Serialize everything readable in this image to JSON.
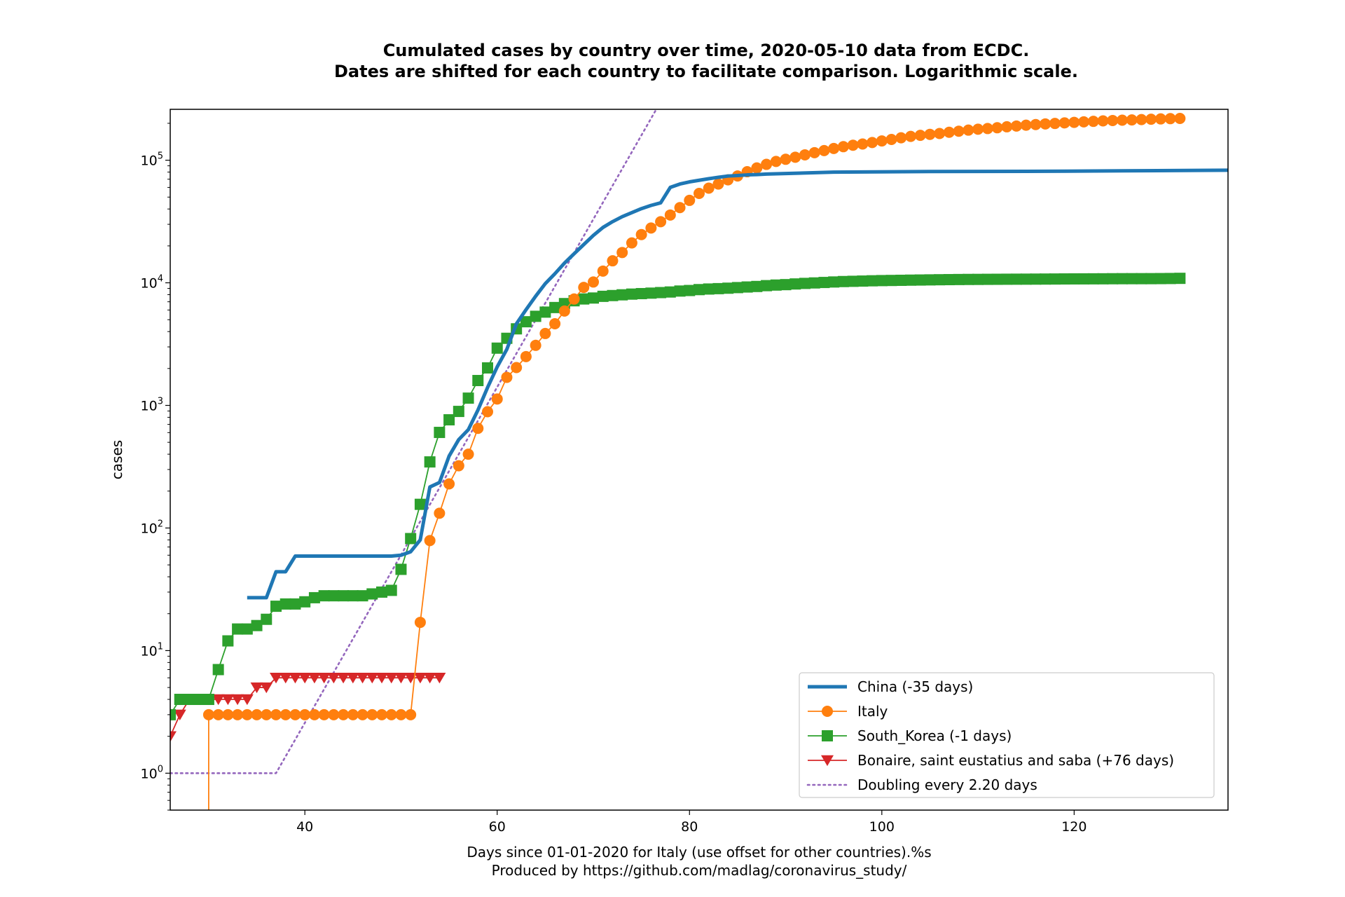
{
  "chart_data": {
    "type": "line",
    "title_lines": [
      "Cumulated cases by country over time, 2020-05-10 data from ECDC.",
      "Dates are shifted for each country to facilitate comparison. Logarithmic scale."
    ],
    "xlabel_lines": [
      "Days since 01-01-2020 for Italy (use offset for other countries).%s",
      "Produced by https://github.com/madlag/coronavirus_study/"
    ],
    "ylabel": "cases",
    "xlim": [
      26,
      136
    ],
    "ylim": [
      0.5,
      260000
    ],
    "yscale": "log",
    "x_ticks": [
      40,
      60,
      80,
      100,
      120
    ],
    "y_ticks": [
      {
        "value": 1,
        "base": "10",
        "exp": "0"
      },
      {
        "value": 10,
        "base": "10",
        "exp": "1"
      },
      {
        "value": 100,
        "base": "10",
        "exp": "2"
      },
      {
        "value": 1000,
        "base": "10",
        "exp": "3"
      },
      {
        "value": 10000,
        "base": "10",
        "exp": "4"
      },
      {
        "value": 100000,
        "base": "10",
        "exp": "5"
      }
    ],
    "grid": false,
    "legend_position": "lower right",
    "series": [
      {
        "name": "China (-35 days)",
        "color": "#1f77b4",
        "marker": "none",
        "line_style": "solid",
        "points": [
          [
            34,
            27
          ],
          [
            36,
            27
          ],
          [
            37,
            44
          ],
          [
            38,
            44
          ],
          [
            39,
            59
          ],
          [
            40,
            59
          ],
          [
            41,
            59
          ],
          [
            42,
            59
          ],
          [
            43,
            59
          ],
          [
            44,
            59
          ],
          [
            45,
            59
          ],
          [
            46,
            59
          ],
          [
            47,
            59
          ],
          [
            48,
            59
          ],
          [
            49,
            59
          ],
          [
            50,
            60
          ],
          [
            51,
            64
          ],
          [
            52,
            80
          ],
          [
            53,
            216
          ],
          [
            54,
            235
          ],
          [
            55,
            386
          ],
          [
            56,
            526
          ],
          [
            57,
            634
          ],
          [
            58,
            916
          ],
          [
            59,
            1399
          ],
          [
            60,
            2062
          ],
          [
            61,
            2863
          ],
          [
            62,
            4630
          ],
          [
            63,
            6031
          ],
          [
            64,
            7772
          ],
          [
            65,
            9847
          ],
          [
            66,
            11853
          ],
          [
            67,
            14476
          ],
          [
            68,
            17271
          ],
          [
            69,
            20502
          ],
          [
            70,
            24347
          ],
          [
            71,
            28276
          ],
          [
            72,
            31531
          ],
          [
            73,
            34635
          ],
          [
            74,
            37317
          ],
          [
            75,
            40265
          ],
          [
            76,
            42769
          ],
          [
            77,
            44905
          ],
          [
            78,
            59997
          ],
          [
            79,
            63939
          ],
          [
            80,
            66576
          ],
          [
            81,
            68584
          ],
          [
            82,
            70635
          ],
          [
            83,
            72528
          ],
          [
            84,
            74279
          ],
          [
            85,
            75002
          ],
          [
            86,
            75891
          ],
          [
            87,
            76289
          ],
          [
            88,
            77042
          ],
          [
            95,
            79981
          ],
          [
            105,
            80824
          ],
          [
            115,
            81093
          ],
          [
            125,
            81853
          ],
          [
            136,
            82886
          ]
        ]
      },
      {
        "name": "Italy",
        "color": "#ff7f0e",
        "marker": "circle",
        "line_style": "solid",
        "points": [
          [
            30,
            0.3
          ],
          [
            30,
            3
          ],
          [
            31,
            3
          ],
          [
            32,
            3
          ],
          [
            33,
            3
          ],
          [
            34,
            3
          ],
          [
            35,
            3
          ],
          [
            36,
            3
          ],
          [
            37,
            3
          ],
          [
            38,
            3
          ],
          [
            39,
            3
          ],
          [
            40,
            3
          ],
          [
            41,
            3
          ],
          [
            42,
            3
          ],
          [
            43,
            3
          ],
          [
            44,
            3
          ],
          [
            45,
            3
          ],
          [
            46,
            3
          ],
          [
            47,
            3
          ],
          [
            48,
            3
          ],
          [
            49,
            3
          ],
          [
            50,
            3
          ],
          [
            51,
            3
          ],
          [
            52,
            17
          ],
          [
            53,
            79
          ],
          [
            54,
            132
          ],
          [
            55,
            229
          ],
          [
            56,
            322
          ],
          [
            57,
            400
          ],
          [
            58,
            650
          ],
          [
            59,
            888
          ],
          [
            60,
            1128
          ],
          [
            61,
            1694
          ],
          [
            62,
            2036
          ],
          [
            63,
            2502
          ],
          [
            64,
            3089
          ],
          [
            65,
            3858
          ],
          [
            66,
            4636
          ],
          [
            67,
            5883
          ],
          [
            68,
            7375
          ],
          [
            69,
            9172
          ],
          [
            70,
            10149
          ],
          [
            71,
            12462
          ],
          [
            72,
            15113
          ],
          [
            73,
            17660
          ],
          [
            74,
            21157
          ],
          [
            75,
            24747
          ],
          [
            76,
            27980
          ],
          [
            77,
            31506
          ],
          [
            78,
            35713
          ],
          [
            79,
            41035
          ],
          [
            80,
            47021
          ],
          [
            81,
            53578
          ],
          [
            82,
            59138
          ],
          [
            83,
            63927
          ],
          [
            84,
            69176
          ],
          [
            85,
            74386
          ],
          [
            86,
            80539
          ],
          [
            87,
            86498
          ],
          [
            88,
            92472
          ],
          [
            89,
            97689
          ],
          [
            90,
            101739
          ],
          [
            91,
            105792
          ],
          [
            92,
            110574
          ],
          [
            93,
            115242
          ],
          [
            94,
            119827
          ],
          [
            95,
            124632
          ],
          [
            96,
            128948
          ],
          [
            97,
            132547
          ],
          [
            98,
            135586
          ],
          [
            99,
            139422
          ],
          [
            100,
            143626
          ],
          [
            101,
            147577
          ],
          [
            102,
            152271
          ],
          [
            103,
            156363
          ],
          [
            104,
            159516
          ],
          [
            105,
            162488
          ],
          [
            106,
            165155
          ],
          [
            107,
            168941
          ],
          [
            108,
            172434
          ],
          [
            109,
            175925
          ],
          [
            110,
            178972
          ],
          [
            111,
            181228
          ],
          [
            112,
            183957
          ],
          [
            113,
            187327
          ],
          [
            114,
            189973
          ],
          [
            115,
            192994
          ],
          [
            116,
            195351
          ],
          [
            117,
            197675
          ],
          [
            118,
            199414
          ],
          [
            119,
            201505
          ],
          [
            120,
            203591
          ],
          [
            121,
            205463
          ],
          [
            122,
            207428
          ],
          [
            123,
            209328
          ],
          [
            124,
            210717
          ],
          [
            125,
            211938
          ],
          [
            126,
            213013
          ],
          [
            127,
            214457
          ],
          [
            128,
            215858
          ],
          [
            129,
            217185
          ],
          [
            130,
            218268
          ],
          [
            131,
            219070
          ]
        ]
      },
      {
        "name": "South_Korea (-1 days)",
        "color": "#2ca02c",
        "marker": "square",
        "line_style": "solid",
        "points": [
          [
            26,
            3
          ],
          [
            27,
            4
          ],
          [
            28,
            4
          ],
          [
            29,
            4
          ],
          [
            30,
            4
          ],
          [
            31,
            7
          ],
          [
            32,
            12
          ],
          [
            33,
            15
          ],
          [
            34,
            15
          ],
          [
            35,
            16
          ],
          [
            36,
            18
          ],
          [
            37,
            23
          ],
          [
            38,
            24
          ],
          [
            39,
            24
          ],
          [
            40,
            25
          ],
          [
            41,
            27
          ],
          [
            42,
            28
          ],
          [
            43,
            28
          ],
          [
            44,
            28
          ],
          [
            45,
            28
          ],
          [
            46,
            28
          ],
          [
            47,
            29
          ],
          [
            48,
            30
          ],
          [
            49,
            31
          ],
          [
            50,
            46
          ],
          [
            51,
            82
          ],
          [
            52,
            156
          ],
          [
            53,
            346
          ],
          [
            54,
            602
          ],
          [
            55,
            763
          ],
          [
            56,
            893
          ],
          [
            57,
            1146
          ],
          [
            58,
            1595
          ],
          [
            59,
            2022
          ],
          [
            60,
            2931
          ],
          [
            61,
            3526
          ],
          [
            62,
            4212
          ],
          [
            63,
            4812
          ],
          [
            64,
            5328
          ],
          [
            65,
            5766
          ],
          [
            66,
            6284
          ],
          [
            67,
            6767
          ],
          [
            68,
            7134
          ],
          [
            69,
            7382
          ],
          [
            70,
            7513
          ],
          [
            71,
            7755
          ],
          [
            72,
            7869
          ],
          [
            73,
            7979
          ],
          [
            74,
            8086
          ],
          [
            75,
            8162
          ],
          [
            76,
            8236
          ],
          [
            77,
            8320
          ],
          [
            78,
            8413
          ],
          [
            79,
            8565
          ],
          [
            80,
            8652
          ],
          [
            81,
            8799
          ],
          [
            82,
            8897
          ],
          [
            83,
            8961
          ],
          [
            84,
            9037
          ],
          [
            85,
            9137
          ],
          [
            86,
            9241
          ],
          [
            87,
            9332
          ],
          [
            88,
            9478
          ],
          [
            89,
            9583
          ],
          [
            90,
            9661
          ],
          [
            91,
            9786
          ],
          [
            92,
            9887
          ],
          [
            93,
            9976
          ],
          [
            94,
            10062
          ],
          [
            95,
            10156
          ],
          [
            96,
            10237
          ],
          [
            97,
            10284
          ],
          [
            98,
            10331
          ],
          [
            99,
            10384
          ],
          [
            100,
            10423
          ],
          [
            101,
            10450
          ],
          [
            102,
            10480
          ],
          [
            103,
            10512
          ],
          [
            104,
            10537
          ],
          [
            105,
            10564
          ],
          [
            106,
            10591
          ],
          [
            107,
            10613
          ],
          [
            108,
            10635
          ],
          [
            109,
            10653
          ],
          [
            110,
            10661
          ],
          [
            111,
            10674
          ],
          [
            112,
            10683
          ],
          [
            113,
            10694
          ],
          [
            114,
            10702
          ],
          [
            115,
            10708
          ],
          [
            116,
            10718
          ],
          [
            117,
            10728
          ],
          [
            118,
            10738
          ],
          [
            119,
            10752
          ],
          [
            120,
            10761
          ],
          [
            121,
            10765
          ],
          [
            122,
            10774
          ],
          [
            123,
            10780
          ],
          [
            124,
            10793
          ],
          [
            125,
            10801
          ],
          [
            126,
            10804
          ],
          [
            127,
            10806
          ],
          [
            128,
            10810
          ],
          [
            129,
            10822
          ],
          [
            130,
            10840
          ],
          [
            131,
            10874
          ]
        ]
      },
      {
        "name": "Bonaire, saint eustatius and saba (+76 days)",
        "color": "#d62728",
        "marker": "triangle-down",
        "line_style": "solid",
        "points": [
          [
            26,
            2
          ],
          [
            27,
            3
          ],
          [
            28,
            4
          ],
          [
            29,
            4
          ],
          [
            30,
            4
          ],
          [
            31,
            4
          ],
          [
            32,
            4
          ],
          [
            33,
            4
          ],
          [
            34,
            4
          ],
          [
            35,
            5
          ],
          [
            36,
            5
          ],
          [
            37,
            6
          ],
          [
            38,
            6
          ],
          [
            39,
            6
          ],
          [
            40,
            6
          ],
          [
            41,
            6
          ],
          [
            42,
            6
          ],
          [
            43,
            6
          ],
          [
            44,
            6
          ],
          [
            45,
            6
          ],
          [
            46,
            6
          ],
          [
            47,
            6
          ],
          [
            48,
            6
          ],
          [
            49,
            6
          ],
          [
            50,
            6
          ],
          [
            51,
            6
          ],
          [
            52,
            6
          ],
          [
            53,
            6
          ],
          [
            54,
            6
          ]
        ]
      },
      {
        "name": "Doubling every 2.20 days",
        "color": "#9467bd",
        "marker": "none",
        "line_style": "dotted",
        "points": [
          [
            26,
            1
          ],
          [
            37,
            1
          ],
          [
            77,
            300000
          ]
        ]
      }
    ]
  }
}
